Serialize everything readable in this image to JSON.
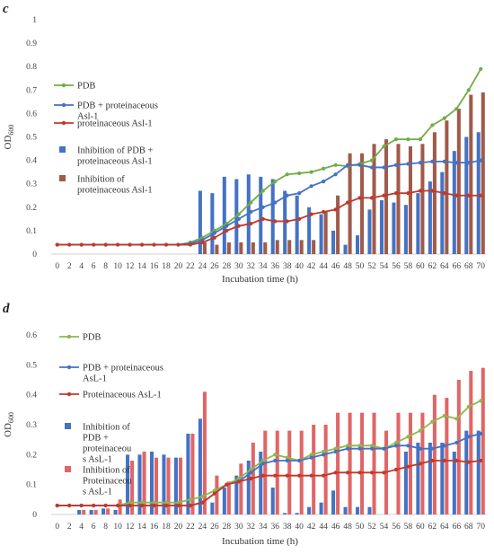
{
  "chart_data": [
    {
      "panel": "c",
      "type": "line",
      "xlabel": "Incubation time (h)",
      "ylabel_main": "OD",
      "ylabel_sub": "600",
      "ylim": [
        0,
        1
      ],
      "yticks": [
        "0",
        "0.1",
        "0.2",
        "0.3",
        "0.4",
        "0.5",
        "0.6",
        "0.7",
        "0.8",
        "0.9",
        "1"
      ],
      "x": [
        0,
        2,
        4,
        6,
        8,
        10,
        12,
        14,
        16,
        18,
        20,
        22,
        24,
        26,
        28,
        30,
        32,
        34,
        36,
        38,
        40,
        42,
        44,
        46,
        48,
        50,
        52,
        54,
        56,
        58,
        60,
        62,
        64,
        66,
        68,
        70
      ],
      "series": [
        {
          "name": "PDB",
          "kind": "line",
          "color": "#70ad47",
          "values": [
            0.04,
            0.04,
            0.04,
            0.04,
            0.04,
            0.04,
            0.04,
            0.04,
            0.04,
            0.04,
            0.04,
            0.05,
            0.07,
            0.1,
            0.13,
            0.17,
            0.22,
            0.27,
            0.31,
            0.34,
            0.345,
            0.35,
            0.365,
            0.38,
            0.375,
            0.385,
            0.4,
            0.46,
            0.49,
            0.49,
            0.49,
            0.55,
            0.58,
            0.62,
            0.7,
            0.79
          ]
        },
        {
          "name": "PDB + proteinaceous\nAsl-1",
          "kind": "line",
          "color": "#4472c4",
          "values": [
            0.04,
            0.04,
            0.04,
            0.04,
            0.04,
            0.04,
            0.04,
            0.04,
            0.04,
            0.04,
            0.04,
            0.045,
            0.06,
            0.09,
            0.12,
            0.15,
            0.18,
            0.2,
            0.22,
            0.25,
            0.26,
            0.29,
            0.31,
            0.34,
            0.38,
            0.38,
            0.37,
            0.37,
            0.38,
            0.385,
            0.39,
            0.395,
            0.395,
            0.39,
            0.39,
            0.4
          ]
        },
        {
          "name": "proteinaceous Asl-1",
          "kind": "line",
          "color": "#c0392b",
          "values": [
            0.04,
            0.04,
            0.04,
            0.04,
            0.04,
            0.04,
            0.04,
            0.04,
            0.04,
            0.04,
            0.04,
            0.04,
            0.05,
            0.07,
            0.1,
            0.12,
            0.13,
            0.15,
            0.14,
            0.14,
            0.15,
            0.17,
            0.18,
            0.19,
            0.22,
            0.24,
            0.24,
            0.25,
            0.26,
            0.26,
            0.27,
            0.27,
            0.26,
            0.25,
            0.25,
            0.25
          ]
        },
        {
          "name": "Inhibition of PDB +\nproteinaceous Asl-1",
          "kind": "bar",
          "color": "#4472c4",
          "values": [
            0,
            0,
            0,
            0,
            0,
            0,
            0,
            0,
            0,
            0,
            0,
            0,
            0.27,
            0.26,
            0.33,
            0.32,
            0.34,
            0.33,
            0.32,
            0.27,
            0.25,
            0.2,
            0.17,
            0.1,
            0.04,
            0.08,
            0.19,
            0.23,
            0.22,
            0.21,
            0.26,
            0.31,
            0.35,
            0.44,
            0.5,
            0.52
          ]
        },
        {
          "name": "Inhibition of\nproteinaceous Asl-1",
          "kind": "bar",
          "color": "#a05a4a",
          "values": [
            0,
            0,
            0,
            0,
            0,
            0,
            0,
            0,
            0,
            0,
            0,
            0,
            0.05,
            0.04,
            0.05,
            0.05,
            0.05,
            0.05,
            0.06,
            0.06,
            0.06,
            0.06,
            0.18,
            0.25,
            0.43,
            0.43,
            0.47,
            0.49,
            0.47,
            0.46,
            0.47,
            0.52,
            0.57,
            0.62,
            0.68,
            0.69
          ]
        }
      ]
    },
    {
      "panel": "d",
      "type": "line",
      "xlabel": "Incubation time (h)",
      "ylabel_main": "OD",
      "ylabel_sub": "600",
      "ylim": [
        0,
        0.6
      ],
      "yticks": [
        "0",
        "0.1",
        "0.2",
        "0.3",
        "0.4",
        "0.5",
        "0.6"
      ],
      "x": [
        0,
        2,
        4,
        6,
        8,
        10,
        12,
        14,
        16,
        18,
        20,
        22,
        24,
        26,
        28,
        30,
        32,
        34,
        36,
        38,
        40,
        42,
        44,
        46,
        48,
        50,
        52,
        54,
        56,
        58,
        60,
        62,
        64,
        66,
        68,
        70
      ],
      "series": [
        {
          "name": "PDB",
          "kind": "line",
          "color": "#8db84f",
          "values": [
            0.03,
            0.03,
            0.03,
            0.03,
            0.03,
            0.03,
            0.04,
            0.04,
            0.04,
            0.04,
            0.04,
            0.05,
            0.06,
            0.08,
            0.1,
            0.12,
            0.15,
            0.18,
            0.2,
            0.19,
            0.18,
            0.2,
            0.21,
            0.22,
            0.23,
            0.23,
            0.23,
            0.22,
            0.24,
            0.26,
            0.28,
            0.31,
            0.33,
            0.32,
            0.36,
            0.38
          ]
        },
        {
          "name": "PDB + proteinaceous\nAsL-1",
          "kind": "line",
          "color": "#4472c4",
          "values": [
            0.03,
            0.03,
            0.03,
            0.03,
            0.03,
            0.03,
            0.03,
            0.03,
            0.03,
            0.03,
            0.03,
            0.03,
            0.04,
            0.07,
            0.1,
            0.11,
            0.14,
            0.17,
            0.18,
            0.18,
            0.18,
            0.19,
            0.2,
            0.21,
            0.22,
            0.22,
            0.22,
            0.22,
            0.23,
            0.23,
            0.22,
            0.22,
            0.23,
            0.24,
            0.26,
            0.27
          ]
        },
        {
          "name": "Proteinaceous AsL-1",
          "kind": "line",
          "color": "#c0392b",
          "values": [
            0.03,
            0.03,
            0.03,
            0.03,
            0.03,
            0.03,
            0.03,
            0.03,
            0.03,
            0.03,
            0.03,
            0.03,
            0.04,
            0.07,
            0.1,
            0.11,
            0.12,
            0.13,
            0.13,
            0.13,
            0.13,
            0.13,
            0.13,
            0.14,
            0.14,
            0.14,
            0.14,
            0.14,
            0.15,
            0.16,
            0.17,
            0.18,
            0.18,
            0.18,
            0.175,
            0.18
          ]
        },
        {
          "name": "Inhibition of\nPDB +\nproteinaceou\ns AsL-1",
          "kind": "bar",
          "color": "#4472c4",
          "values": [
            0,
            0,
            0.015,
            0.015,
            0.02,
            0.015,
            0.2,
            0.2,
            0.21,
            0.2,
            0.19,
            0.27,
            0.32,
            0.04,
            0.09,
            0.13,
            0.18,
            0.21,
            0.09,
            0.005,
            0.005,
            0.025,
            0.04,
            0.08,
            0.025,
            0.025,
            0.025,
            0,
            0,
            0.21,
            0.24,
            0.24,
            0.24,
            0.21,
            0.28,
            0.28
          ]
        },
        {
          "name": "Inhibition of\nProteinaceou\ns AsL-1",
          "kind": "bar",
          "color": "#e06666",
          "values": [
            0,
            0,
            0.015,
            0.015,
            0.02,
            0.05,
            0.18,
            0.21,
            0.19,
            0.19,
            0.19,
            0.27,
            0.41,
            0.13,
            0.11,
            0.17,
            0.24,
            0.28,
            0.28,
            0.28,
            0.28,
            0.3,
            0.3,
            0.34,
            0.34,
            0.34,
            0.34,
            0.28,
            0.34,
            0.34,
            0.34,
            0.4,
            0.39,
            0.45,
            0.48,
            0.49
          ]
        }
      ]
    }
  ]
}
